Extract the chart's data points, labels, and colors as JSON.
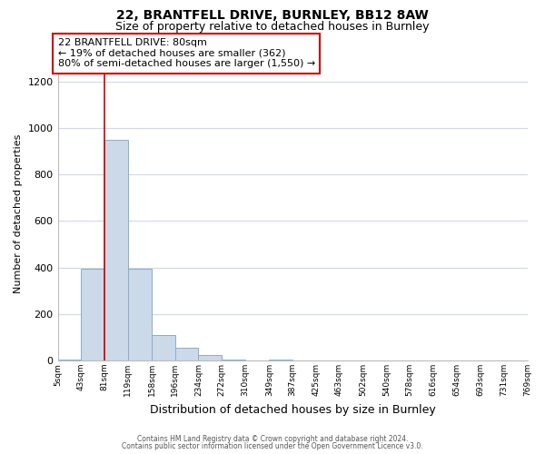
{
  "title": "22, BRANTFELL DRIVE, BURNLEY, BB12 8AW",
  "subtitle": "Size of property relative to detached houses in Burnley",
  "xlabel": "Distribution of detached houses by size in Burnley",
  "ylabel": "Number of detached properties",
  "bar_color": "#ccd9e8",
  "bar_edge_color": "#8aaec8",
  "background_color": "#ffffff",
  "grid_color": "#d0d8e8",
  "bin_edges": [
    5,
    43,
    81,
    119,
    158,
    196,
    234,
    272,
    310,
    349,
    387,
    425,
    463,
    502,
    540,
    578,
    616,
    654,
    693,
    731,
    769
  ],
  "bin_labels": [
    "5sqm",
    "43sqm",
    "81sqm",
    "119sqm",
    "158sqm",
    "196sqm",
    "234sqm",
    "272sqm",
    "310sqm",
    "349sqm",
    "387sqm",
    "425sqm",
    "463sqm",
    "502sqm",
    "540sqm",
    "578sqm",
    "616sqm",
    "654sqm",
    "693sqm",
    "731sqm",
    "769sqm"
  ],
  "bar_heights": [
    5,
    395,
    950,
    393,
    108,
    55,
    22,
    5,
    0,
    5,
    0,
    0,
    0,
    0,
    0,
    0,
    0,
    0,
    0,
    0
  ],
  "property_line_x": 81,
  "annotation_line0": "22 BRANTFELL DRIVE: 80sqm",
  "annotation_line1": "← 19% of detached houses are smaller (362)",
  "annotation_line2": "80% of semi-detached houses are larger (1,550) →",
  "annotation_box_color": "#ffffff",
  "annotation_box_edge_color": "#cc0000",
  "property_line_color": "#cc0000",
  "ylim": [
    0,
    1260
  ],
  "yticks": [
    0,
    200,
    400,
    600,
    800,
    1000,
    1200
  ],
  "footer1": "Contains HM Land Registry data © Crown copyright and database right 2024.",
  "footer2": "Contains public sector information licensed under the Open Government Licence v3.0."
}
